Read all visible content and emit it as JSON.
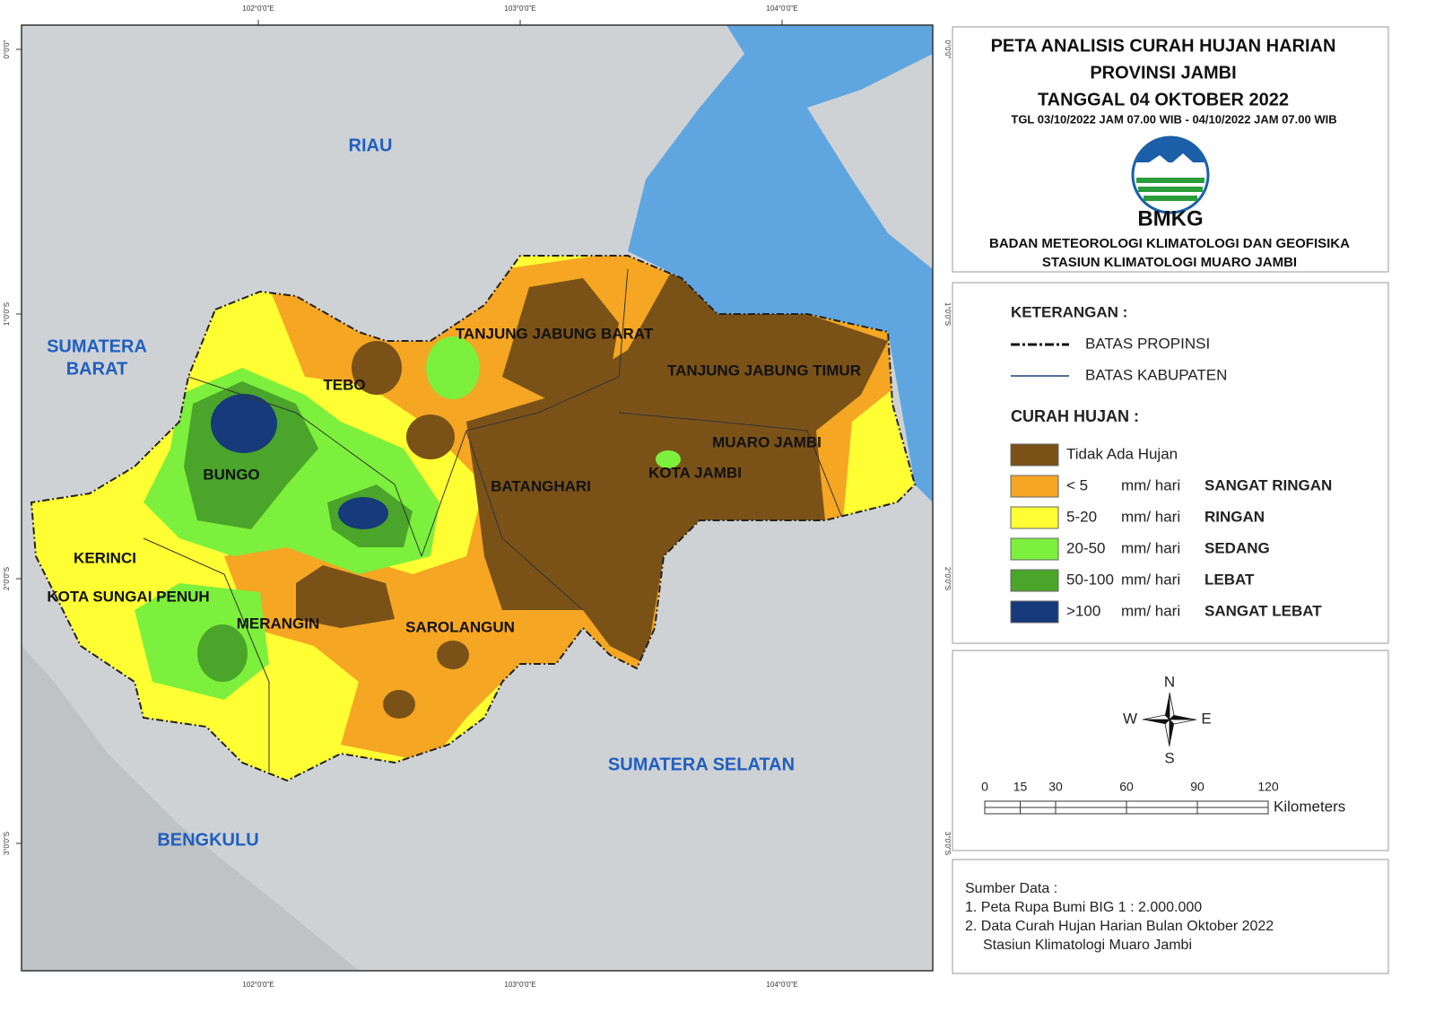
{
  "map": {
    "graticule": {
      "longitudes": [
        "102°0'0\"E",
        "103°0'0\"E",
        "104°0'0\"E"
      ],
      "latitudes": [
        "0°0'0\"",
        "1°0'0\"S",
        "2°0'0\"S",
        "3°0'0\"S"
      ]
    },
    "neighbor_provinces": [
      [
        "RIAU"
      ],
      [
        "SUMATERA",
        "BARAT"
      ],
      [
        "SUMATERA SELATAN"
      ],
      [
        "BENGKULU"
      ]
    ],
    "districts": [
      "TANJUNG JABUNG BARAT",
      "TANJUNG JABUNG TIMUR",
      "TEBO",
      "MUARO JAMBI",
      "BUNGO",
      "KOTA JAMBI",
      "BATANGHARI",
      "KERINCI",
      "KOTA SUNGAI PENUH",
      "MERANGIN",
      "SAROLANGUN"
    ]
  },
  "header": {
    "title_lines": [
      "PETA ANALISIS CURAH HUJAN HARIAN",
      "PROVINSI JAMBI",
      "TANGGAL 04 OKTOBER 2022"
    ],
    "subtitle": "TGL 03/10/2022 JAM 07.00 WIB - 04/10/2022 JAM 07.00 WIB",
    "logo_text": "BMKG",
    "agency_lines": [
      "BADAN METEOROLOGI KLIMATOLOGI DAN GEOFISIKA",
      "STASIUN KLIMATOLOGI MUARO JAMBI"
    ]
  },
  "legend": {
    "title": "KETERANGAN :",
    "lines": [
      "BATAS PROPINSI",
      "BATAS KABUPATEN"
    ],
    "rain_title": "CURAH HUJAN :",
    "items": [
      {
        "label": "Tidak Ada Hujan",
        "color": "#7a5218"
      },
      {
        "range": "< 5",
        "unit": "mm/ hari",
        "class": "SANGAT RINGAN",
        "color": "#f5a623"
      },
      {
        "range": "5-20",
        "unit": "mm/ hari",
        "class": "RINGAN",
        "color": "#ffff33"
      },
      {
        "range": "20-50",
        "unit": "mm/ hari",
        "class": "SEDANG",
        "color": "#7cf03c"
      },
      {
        "range": "50-100",
        "unit": "mm/ hari",
        "class": "LEBAT",
        "color": "#4aa52a"
      },
      {
        "range": ">100",
        "unit": "mm/ hari",
        "class": "SANGAT LEBAT",
        "color": "#173a7a"
      }
    ]
  },
  "compass": {
    "north": "N",
    "south": "S",
    "east": "E",
    "west": "W"
  },
  "scale_bar": {
    "ticks": [
      0,
      15,
      30,
      60,
      90,
      120
    ],
    "unit": "Kilometers"
  },
  "source": {
    "title": "Sumber Data :",
    "lines": [
      "1. Peta Rupa Bumi BIG 1 : 2.000.000",
      "2. Data Curah Hujan Harian Bulan Oktober 2022",
      "Stasiun Klimatologi Muaro Jambi"
    ]
  }
}
